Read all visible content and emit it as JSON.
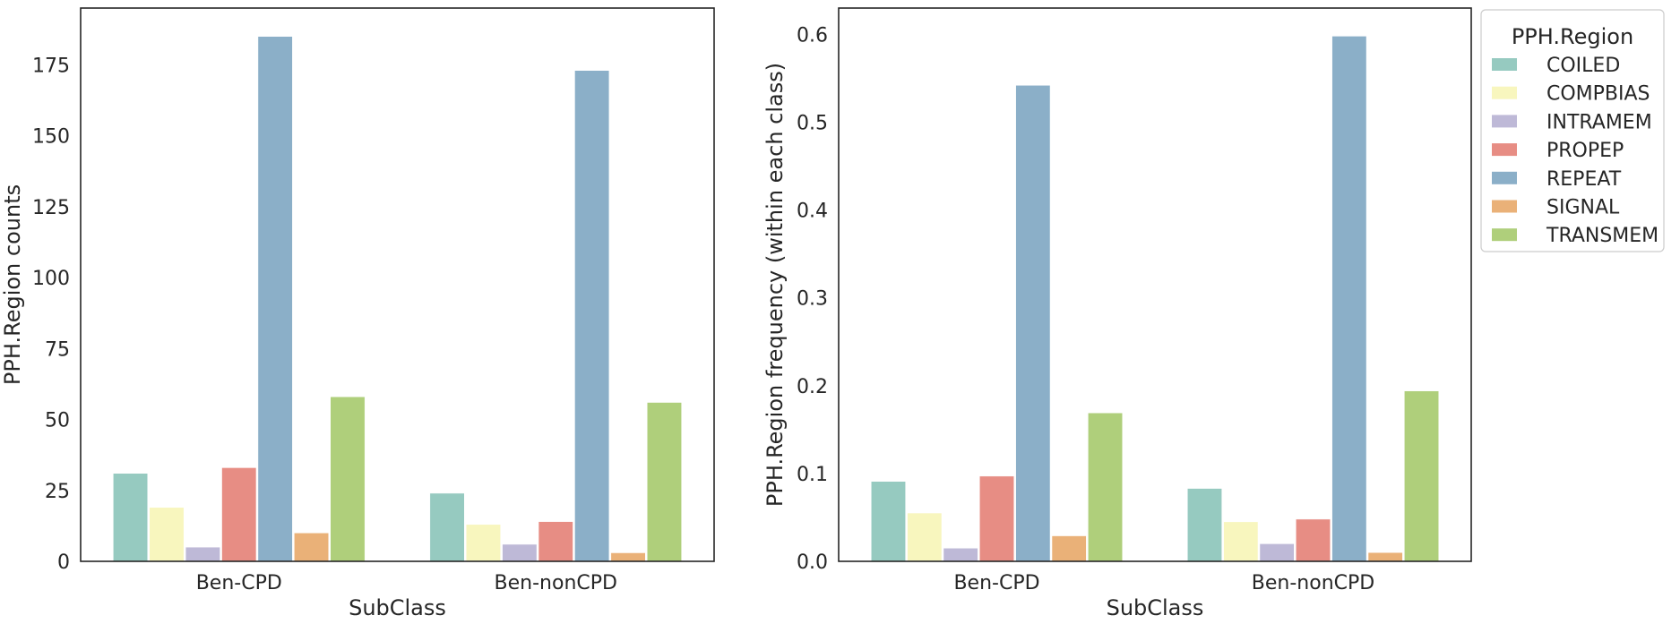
{
  "chart_data": [
    {
      "type": "bar",
      "xlabel": "SubClass",
      "ylabel": "PPH.Region counts",
      "categories": [
        "Ben-CPD",
        "Ben-nonCPD"
      ],
      "ylim": [
        0,
        195
      ],
      "yticks": [
        0,
        25,
        50,
        75,
        100,
        125,
        150,
        175
      ],
      "ytick_labels": [
        "0",
        "25",
        "50",
        "75",
        "100",
        "125",
        "150",
        "175"
      ],
      "series": [
        {
          "name": "COILED",
          "values": [
            31,
            24
          ]
        },
        {
          "name": "COMPBIAS",
          "values": [
            19,
            13
          ]
        },
        {
          "name": "INTRAMEM",
          "values": [
            5,
            6
          ]
        },
        {
          "name": "PROPEP",
          "values": [
            33,
            14
          ]
        },
        {
          "name": "REPEAT",
          "values": [
            185,
            173
          ]
        },
        {
          "name": "SIGNAL",
          "values": [
            10,
            3
          ]
        },
        {
          "name": "TRANSMEM",
          "values": [
            58,
            56
          ]
        }
      ]
    },
    {
      "type": "bar",
      "xlabel": "SubClass",
      "ylabel": "PPH.Region frequency (within each class)",
      "categories": [
        "Ben-CPD",
        "Ben-nonCPD"
      ],
      "ylim": [
        0,
        0.63
      ],
      "yticks": [
        0,
        0.1,
        0.2,
        0.3,
        0.4,
        0.5,
        0.6
      ],
      "ytick_labels": [
        "0.0",
        "0.1",
        "0.2",
        "0.3",
        "0.4",
        "0.5",
        "0.6"
      ],
      "series": [
        {
          "name": "COILED",
          "values": [
            0.091,
            0.083
          ]
        },
        {
          "name": "COMPBIAS",
          "values": [
            0.055,
            0.045
          ]
        },
        {
          "name": "INTRAMEM",
          "values": [
            0.015,
            0.02
          ]
        },
        {
          "name": "PROPEP",
          "values": [
            0.097,
            0.048
          ]
        },
        {
          "name": "REPEAT",
          "values": [
            0.542,
            0.598
          ]
        },
        {
          "name": "SIGNAL",
          "values": [
            0.029,
            0.01
          ]
        },
        {
          "name": "TRANSMEM",
          "values": [
            0.169,
            0.194
          ]
        }
      ],
      "legend": {
        "title": "PPH.Region",
        "placement": "outside-upper-right",
        "entries": [
          "COILED",
          "COMPBIAS",
          "INTRAMEM",
          "PROPEP",
          "REPEAT",
          "SIGNAL",
          "TRANSMEM"
        ]
      }
    }
  ],
  "colors": {
    "COILED": "#96cac0",
    "COMPBIAS": "#f8f6be",
    "INTRAMEM": "#beb9d7",
    "PROPEP": "#e78d84",
    "REPEAT": "#8bafc8",
    "SIGNAL": "#eab178",
    "TRANSMEM": "#afcf7b",
    "axis": "#262626",
    "background": "#ffffff"
  }
}
